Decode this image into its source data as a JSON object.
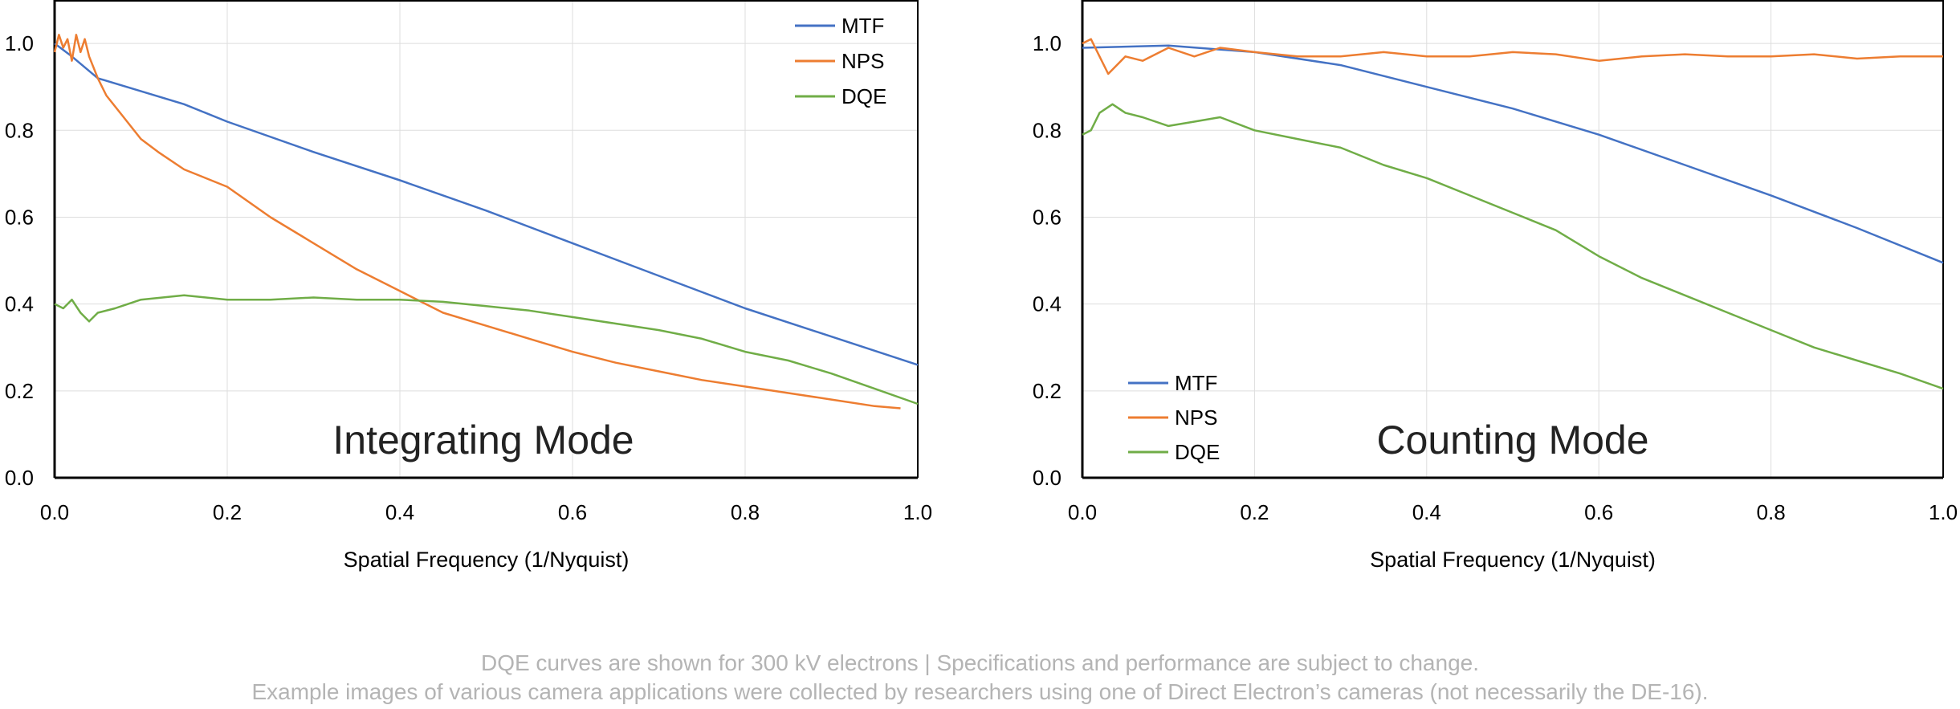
{
  "colors": {
    "MTF": "#4472c4",
    "NPS": "#ed7d31",
    "DQE": "#70ad47"
  },
  "footnote": {
    "line1": "DQE curves are shown for 300 kV electrons  |  Specifications and performance are subject to change.",
    "line2": "Example images of various camera applications were collected by researchers using one of Direct Electron’s cameras (not necessarily the DE-16)."
  },
  "chart_data": [
    {
      "type": "line",
      "title": "Integrating Mode",
      "xlabel": "Spatial Frequency (1/Nyquist)",
      "ylabel": "",
      "xlim": [
        0,
        1
      ],
      "ylim": [
        0,
        1.1
      ],
      "xticks": [
        "0.0",
        "0.2",
        "0.4",
        "0.6",
        "0.8",
        "1.0"
      ],
      "yticks": [
        "0.0",
        "0.2",
        "0.4",
        "0.6",
        "0.8",
        "1.0"
      ],
      "grid": true,
      "legend": "top-right",
      "series": [
        {
          "name": "MTF",
          "x": [
            0,
            0.02,
            0.05,
            0.1,
            0.15,
            0.2,
            0.3,
            0.4,
            0.5,
            0.6,
            0.7,
            0.8,
            0.9,
            1.0
          ],
          "y": [
            1.0,
            0.97,
            0.92,
            0.89,
            0.86,
            0.82,
            0.75,
            0.685,
            0.615,
            0.54,
            0.465,
            0.39,
            0.325,
            0.26
          ]
        },
        {
          "name": "NPS",
          "x": [
            0,
            0.005,
            0.01,
            0.015,
            0.02,
            0.025,
            0.03,
            0.035,
            0.04,
            0.05,
            0.06,
            0.08,
            0.1,
            0.12,
            0.15,
            0.2,
            0.25,
            0.3,
            0.35,
            0.4,
            0.45,
            0.5,
            0.55,
            0.6,
            0.65,
            0.7,
            0.75,
            0.8,
            0.85,
            0.9,
            0.95,
            0.98
          ],
          "y": [
            0.98,
            1.02,
            0.99,
            1.01,
            0.96,
            1.02,
            0.98,
            1.01,
            0.97,
            0.92,
            0.88,
            0.83,
            0.78,
            0.75,
            0.71,
            0.67,
            0.6,
            0.54,
            0.48,
            0.43,
            0.38,
            0.35,
            0.32,
            0.29,
            0.265,
            0.245,
            0.225,
            0.21,
            0.195,
            0.18,
            0.165,
            0.16
          ]
        },
        {
          "name": "DQE",
          "x": [
            0,
            0.01,
            0.02,
            0.03,
            0.04,
            0.05,
            0.07,
            0.1,
            0.15,
            0.2,
            0.25,
            0.3,
            0.35,
            0.4,
            0.45,
            0.5,
            0.55,
            0.6,
            0.65,
            0.7,
            0.75,
            0.8,
            0.85,
            0.9,
            0.95,
            1.0
          ],
          "y": [
            0.4,
            0.39,
            0.41,
            0.38,
            0.36,
            0.38,
            0.39,
            0.41,
            0.42,
            0.41,
            0.41,
            0.415,
            0.41,
            0.41,
            0.405,
            0.395,
            0.385,
            0.37,
            0.355,
            0.34,
            0.32,
            0.29,
            0.27,
            0.24,
            0.205,
            0.17
          ]
        }
      ]
    },
    {
      "type": "line",
      "title": "Counting Mode",
      "xlabel": "Spatial Frequency (1/Nyquist)",
      "ylabel": "",
      "xlim": [
        0,
        1
      ],
      "ylim": [
        0,
        1.1
      ],
      "xticks": [
        "0.0",
        "0.2",
        "0.4",
        "0.6",
        "0.8",
        "1.0"
      ],
      "yticks": [
        "0.0",
        "0.2",
        "0.4",
        "0.6",
        "0.8",
        "1.0"
      ],
      "grid": true,
      "legend": "bottom-left",
      "series": [
        {
          "name": "MTF",
          "x": [
            0,
            0.1,
            0.2,
            0.3,
            0.4,
            0.5,
            0.6,
            0.7,
            0.8,
            0.9,
            1.0
          ],
          "y": [
            0.99,
            0.995,
            0.98,
            0.95,
            0.9,
            0.85,
            0.79,
            0.72,
            0.65,
            0.575,
            0.495
          ]
        },
        {
          "name": "NPS",
          "x": [
            0,
            0.01,
            0.02,
            0.03,
            0.05,
            0.07,
            0.1,
            0.13,
            0.16,
            0.2,
            0.25,
            0.3,
            0.35,
            0.4,
            0.45,
            0.5,
            0.55,
            0.6,
            0.65,
            0.7,
            0.75,
            0.8,
            0.85,
            0.9,
            0.95,
            1.0
          ],
          "y": [
            1.0,
            1.01,
            0.97,
            0.93,
            0.97,
            0.96,
            0.99,
            0.97,
            0.99,
            0.98,
            0.97,
            0.97,
            0.98,
            0.97,
            0.97,
            0.98,
            0.975,
            0.96,
            0.97,
            0.975,
            0.97,
            0.97,
            0.975,
            0.965,
            0.97,
            0.97
          ]
        },
        {
          "name": "DQE",
          "x": [
            0,
            0.01,
            0.02,
            0.035,
            0.05,
            0.07,
            0.1,
            0.13,
            0.16,
            0.2,
            0.25,
            0.3,
            0.35,
            0.4,
            0.45,
            0.5,
            0.55,
            0.6,
            0.65,
            0.7,
            0.75,
            0.8,
            0.85,
            0.9,
            0.95,
            1.0
          ],
          "y": [
            0.79,
            0.8,
            0.84,
            0.86,
            0.84,
            0.83,
            0.81,
            0.82,
            0.83,
            0.8,
            0.78,
            0.76,
            0.72,
            0.69,
            0.65,
            0.61,
            0.57,
            0.51,
            0.46,
            0.42,
            0.38,
            0.34,
            0.3,
            0.27,
            0.24,
            0.205
          ]
        }
      ]
    }
  ]
}
